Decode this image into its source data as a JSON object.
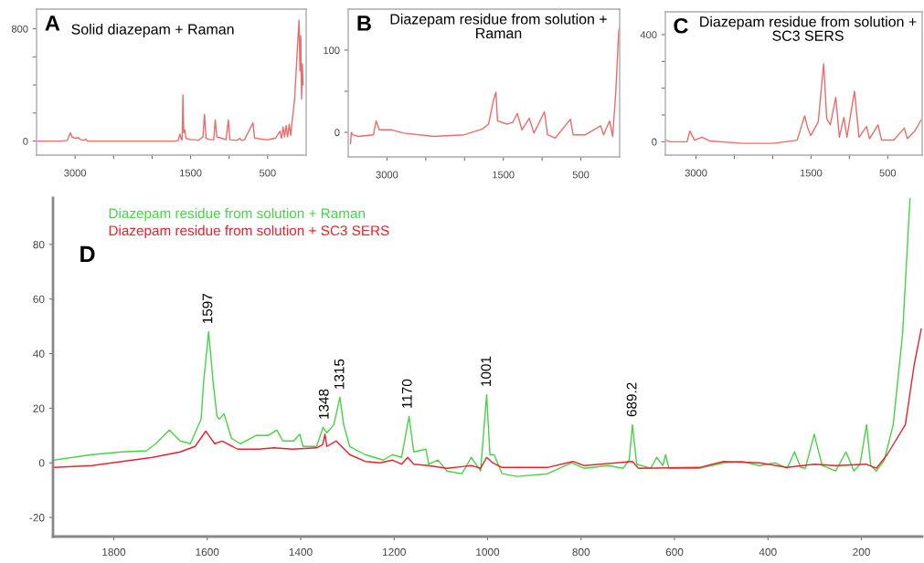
{
  "chart_data": [
    {
      "type": "line",
      "title": "Solid diazepam + Raman",
      "annotations": [
        "A"
      ],
      "xlim": [
        3500,
        0
      ],
      "ylim": [
        -100,
        940
      ],
      "xticks": [
        3000,
        {
          "value": 2500,
          "label": null
        },
        {
          "value": 2000,
          "label": null
        },
        1500,
        {
          "value": 1000,
          "label": null
        },
        500
      ],
      "yticks": [
        0,
        {
          "value": 200,
          "label": null
        },
        {
          "value": 400,
          "label": null
        },
        {
          "value": 600,
          "label": null
        },
        800
      ],
      "series": [
        {
          "color": "#ee6b6b",
          "x": [
            3500,
            3200,
            3100,
            3060,
            3040,
            3000,
            2960,
            2930,
            2880,
            2860,
            2840,
            2500,
            2000,
            1700,
            1660,
            1640,
            1620,
            1610,
            1600,
            1590,
            1575,
            1560,
            1500,
            1450,
            1400,
            1340,
            1320,
            1300,
            1250,
            1200,
            1180,
            1160,
            1100,
            1040,
            1010,
            990,
            900,
            860,
            840,
            800,
            690,
            670,
            640,
            600,
            500,
            450,
            400,
            340,
            320,
            300,
            280,
            260,
            240,
            220,
            200,
            180,
            150,
            120,
            93,
            80,
            70,
            60,
            50,
            40
          ],
          "values": [
            0,
            0,
            5,
            60,
            30,
            20,
            25,
            10,
            5,
            15,
            0,
            0,
            0,
            0,
            5,
            50,
            10,
            10,
            330,
            60,
            80,
            20,
            10,
            10,
            5,
            30,
            190,
            20,
            10,
            10,
            150,
            30,
            20,
            10,
            150,
            10,
            5,
            20,
            5,
            10,
            130,
            20,
            20,
            15,
            10,
            15,
            20,
            70,
            20,
            100,
            30,
            110,
            30,
            120,
            40,
            150,
            300,
            600,
            860,
            500,
            750,
            300,
            550,
            400
          ]
        }
      ]
    },
    {
      "type": "line",
      "title": "Diazepam residue from solution + Raman",
      "annotations": [
        "B"
      ],
      "xlim": [
        3500,
        0
      ],
      "ylim": [
        -30,
        150
      ],
      "xticks": [
        3000,
        {
          "value": 2500,
          "label": null
        },
        {
          "value": 2000,
          "label": null
        },
        1500,
        {
          "value": 1000,
          "label": null
        },
        500
      ],
      "yticks": [
        0,
        {
          "value": 50,
          "label": null
        },
        100
      ],
      "series": [
        {
          "color": "#ee6b6b",
          "x": [
            3470,
            3460,
            3440,
            3370,
            3175,
            3140,
            3100,
            2940,
            2785,
            2395,
            2000,
            1770,
            1690,
            1630,
            1595,
            1575,
            1455,
            1380,
            1320,
            1260,
            1165,
            1105,
            970,
            930,
            830,
            635,
            600,
            440,
            246,
            207,
            130,
            90,
            50,
            12,
            0
          ],
          "values": [
            -14,
            0,
            -3,
            -5,
            -3,
            14,
            3,
            3,
            -1,
            -5,
            -3,
            4,
            10,
            38,
            49,
            14,
            10,
            12,
            23,
            3,
            17,
            -1,
            25,
            -3,
            -7,
            16,
            -3,
            -3,
            8,
            -3,
            14,
            -5,
            49,
            123,
            128
          ]
        }
      ]
    },
    {
      "type": "line",
      "title": "Diazepam residue from solution + SC3 SERS",
      "annotations": [
        "C"
      ],
      "xlim": [
        3400,
        50
      ],
      "ylim": [
        -50,
        485
      ],
      "xticks": [
        3000,
        {
          "value": 2500,
          "label": null
        },
        {
          "value": 2000,
          "label": null
        },
        1500,
        {
          "value": 1000,
          "label": null
        },
        500
      ],
      "yticks": [
        0,
        {
          "value": 100,
          "label": null
        },
        {
          "value": 200,
          "label": null
        },
        {
          "value": 300,
          "label": null
        },
        400
      ],
      "series": [
        {
          "color": "#ee6b6b",
          "x": [
            3394,
            3335,
            3118,
            3080,
            3020,
            2920,
            2823,
            2390,
            1996,
            1680,
            1583,
            1543,
            1504,
            1406,
            1335,
            1295,
            1248,
            1177,
            1130,
            1071,
            1031,
            933,
            874,
            776,
            736,
            626,
            579,
            421,
            283,
            244,
            146,
            67
          ],
          "values": [
            6,
            0,
            0,
            40,
            6,
            17,
            3,
            -6,
            -6,
            6,
            97,
            51,
            23,
            74,
            291,
            86,
            63,
            166,
            17,
            91,
            17,
            189,
            17,
            57,
            11,
            63,
            6,
            6,
            51,
            11,
            40,
            80
          ]
        }
      ]
    },
    {
      "type": "line",
      "annotations": [
        "D",
        {
          "text": "1597",
          "x": 1597,
          "y": 48
        },
        {
          "text": "1348",
          "x": 1348,
          "y": 13
        },
        {
          "text": "1315",
          "x": 1315,
          "y": 24
        },
        {
          "text": "1170",
          "x": 1170,
          "y": 17
        },
        {
          "text": "1001",
          "x": 1001,
          "y": 25
        },
        {
          "text": "689.2",
          "x": 689.2,
          "y": 14
        }
      ],
      "xlim": [
        1930,
        70
      ],
      "ylim": [
        -27,
        97
      ],
      "xticks": [
        1800,
        1600,
        1400,
        1200,
        1000,
        800,
        600,
        400,
        200
      ],
      "yticks": [
        -20,
        0,
        20,
        40,
        60,
        80
      ],
      "legend": "top left",
      "series": [
        {
          "name": "Diazepam residue from solution + Raman",
          "color": "#44d444",
          "x": [
            1928,
            1847,
            1782,
            1730,
            1710,
            1681,
            1658,
            1636,
            1613,
            1608,
            1597,
            1587,
            1579,
            1574,
            1564,
            1548,
            1529,
            1496,
            1470,
            1451,
            1438,
            1415,
            1402,
            1395,
            1366,
            1352,
            1344,
            1329,
            1316,
            1308,
            1295,
            1262,
            1223,
            1204,
            1184,
            1168,
            1158,
            1132,
            1126,
            1106,
            1087,
            1055,
            1035,
            1015,
            1002,
            995,
            986,
            969,
            937,
            872,
            820,
            794,
            742,
            710,
            697,
            690,
            681,
            651,
            638,
            625,
            619,
            612,
            547,
            495,
            456,
            418,
            385,
            359,
            343,
            330,
            320,
            301,
            284,
            255,
            233,
            216,
            203,
            189,
            180,
            168,
            151,
            132,
            112,
            96
          ],
          "values": [
            1,
            3,
            4,
            4.4,
            7,
            12,
            8,
            7,
            16,
            29,
            48,
            29,
            17,
            16,
            18,
            9,
            7,
            10,
            10,
            12,
            8,
            8,
            10.5,
            6,
            6,
            13,
            11,
            14,
            24,
            14,
            6,
            3,
            1,
            3,
            2,
            17,
            4,
            5,
            -0.5,
            1,
            -3,
            -4,
            2,
            -3,
            25,
            3,
            3,
            -4,
            -5,
            -4,
            0,
            -2,
            -1,
            -2,
            1,
            14,
            -0.5,
            -2,
            2,
            -1,
            3,
            -2,
            -2,
            0,
            0.5,
            -1,
            0,
            -2,
            4,
            -1.7,
            -2,
            10.5,
            -1,
            -3,
            4,
            -3,
            -0.5,
            14,
            -1,
            -3,
            1,
            14,
            47,
            97
          ]
        },
        {
          "name": "Diazepam residue from solution + SC3 SERS",
          "color": "#e8222a",
          "x": [
            1928,
            1847,
            1782,
            1717,
            1658,
            1626,
            1603,
            1594,
            1584,
            1568,
            1535,
            1490,
            1457,
            1418,
            1366,
            1353,
            1348,
            1344,
            1324,
            1295,
            1262,
            1230,
            1204,
            1184,
            1171,
            1158,
            1126,
            1087,
            1035,
            1015,
            1002,
            989,
            969,
            872,
            817,
            794,
            690,
            677,
            547,
            495,
            418,
            359,
            301,
            255,
            190,
            168,
            145,
            106,
            87,
            72
          ],
          "values": [
            -1.7,
            -1,
            0.5,
            2,
            4,
            6,
            11.6,
            9.4,
            7,
            8,
            5,
            5,
            5.5,
            5,
            5.5,
            6.6,
            10.5,
            6,
            8,
            3,
            0.5,
            0,
            1,
            -0.5,
            2,
            -0.5,
            -1,
            -2,
            -1,
            -2,
            2,
            0,
            -1.7,
            -1.7,
            0.5,
            -1,
            0.5,
            -2,
            -1.7,
            0.5,
            0,
            -1.7,
            -0.5,
            -1,
            -0.5,
            -2,
            3,
            14,
            36,
            49
          ]
        }
      ]
    }
  ]
}
